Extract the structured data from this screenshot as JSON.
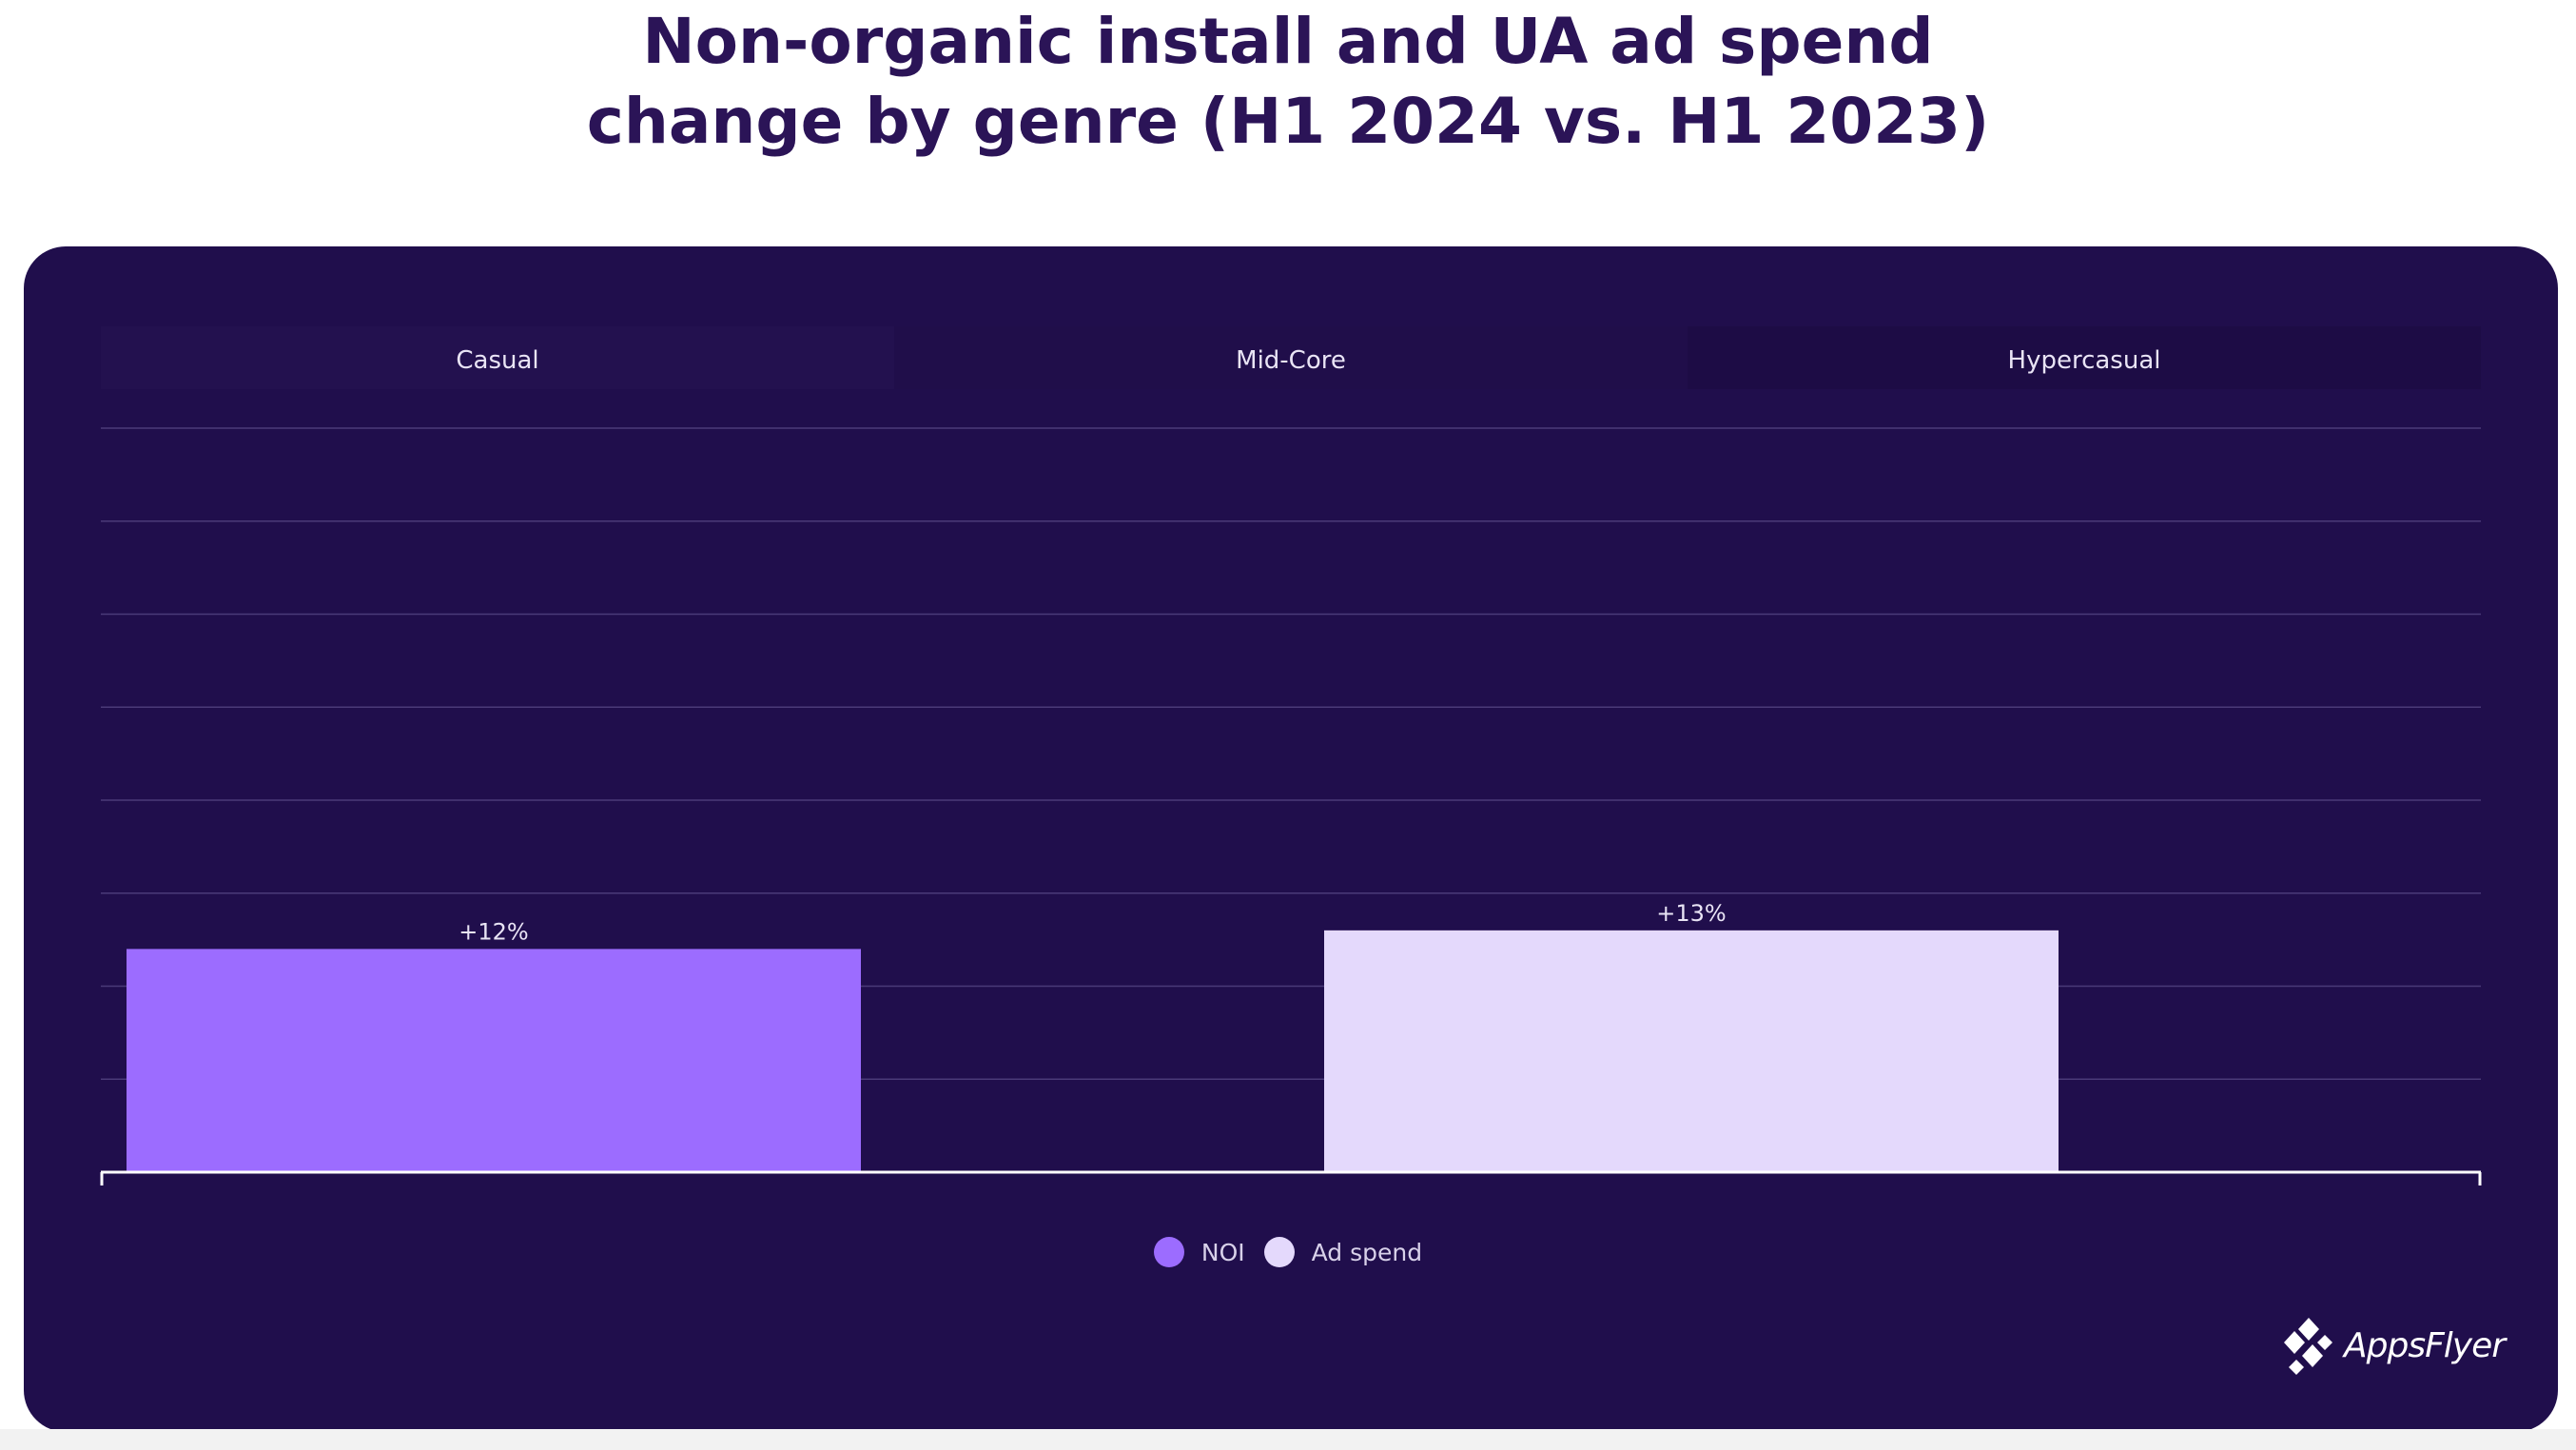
{
  "title": {
    "line1": "Non-organic install and UA ad spend",
    "line2": "change by genre (H1 2024 vs. H1 2023)"
  },
  "brand": {
    "name": "AppsFlyer",
    "logo_icon": "appsflyer-logo-icon"
  },
  "colors": {
    "background": "#ffffff",
    "panel": "#200e4c",
    "title": "#2b1457",
    "noi": "#9c6cff",
    "ad_spend": "#e4d9fc",
    "gridline": "#4a3a78",
    "axis": "#ffffff",
    "label": "#e9e4f5"
  },
  "chart_data": {
    "type": "bar",
    "categories": [
      "Casual",
      "Mid-Core",
      "Hypercasual"
    ],
    "series": [
      {
        "name": "NOI",
        "values": [
          12,
          null,
          null
        ],
        "labels": [
          "+12%",
          "",
          ""
        ]
      },
      {
        "name": "Ad spend",
        "values": [
          null,
          13,
          null
        ],
        "labels": [
          "",
          "+13%",
          ""
        ]
      }
    ],
    "ylim": [
      0,
      40
    ],
    "grid": true,
    "legend": "bottom-center",
    "xlabel": "",
    "ylabel": ""
  }
}
